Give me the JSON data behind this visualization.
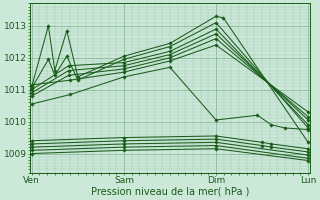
{
  "background_color": "#cce8d8",
  "line_color": "#1a5c1a",
  "grid_color_minor": "#aacfbc",
  "grid_color_major": "#88b89a",
  "xlabel": "Pression niveau de la mer( hPa )",
  "xtick_labels": [
    "Ven",
    "Sam",
    "Dim",
    "Lun"
  ],
  "xtick_positions": [
    0,
    1,
    2,
    3
  ],
  "ylim": [
    1008.4,
    1013.6
  ],
  "yticks": [
    1009,
    1010,
    1011,
    1012,
    1013
  ],
  "upper_series": [
    {
      "x": [
        0.0,
        0.18,
        0.25,
        0.38,
        0.5,
        1.0,
        1.5,
        2.0,
        2.08,
        3.0
      ],
      "y": [
        1011.1,
        1013.0,
        1011.6,
        1012.85,
        1011.4,
        1012.05,
        1012.45,
        1013.3,
        1013.25,
        1009.35
      ]
    },
    {
      "x": [
        0.0,
        0.18,
        0.25,
        0.38,
        0.5,
        1.0,
        1.5,
        2.0,
        3.0
      ],
      "y": [
        1011.05,
        1011.95,
        1011.45,
        1012.05,
        1011.3,
        1011.95,
        1012.35,
        1013.1,
        1009.8
      ]
    },
    {
      "x": [
        0.0,
        0.4,
        1.0,
        1.5,
        2.0,
        3.0
      ],
      "y": [
        1011.0,
        1011.75,
        1011.85,
        1012.2,
        1012.9,
        1009.9
      ]
    },
    {
      "x": [
        0.0,
        0.4,
        1.0,
        1.5,
        2.0,
        3.0
      ],
      "y": [
        1010.9,
        1011.6,
        1011.75,
        1012.1,
        1012.75,
        1010.05
      ]
    },
    {
      "x": [
        0.0,
        0.4,
        1.0,
        1.5,
        2.0,
        3.0
      ],
      "y": [
        1010.8,
        1011.45,
        1011.65,
        1012.0,
        1012.6,
        1010.15
      ]
    },
    {
      "x": [
        0.0,
        0.42,
        1.0,
        1.5,
        2.0,
        3.0
      ],
      "y": [
        1011.15,
        1011.3,
        1011.55,
        1011.9,
        1012.4,
        1010.3
      ]
    },
    {
      "x": [
        0.0,
        0.42,
        1.0,
        1.5,
        2.0,
        2.45,
        2.6,
        2.75,
        3.0
      ],
      "y": [
        1010.55,
        1010.85,
        1011.4,
        1011.7,
        1010.05,
        1010.2,
        1009.9,
        1009.8,
        1009.75
      ]
    }
  ],
  "lower_series": [
    {
      "x": [
        0.0,
        1.0,
        2.0,
        2.5,
        2.6,
        3.0
      ],
      "y": [
        1009.4,
        1009.5,
        1009.55,
        1009.35,
        1009.3,
        1009.15
      ]
    },
    {
      "x": [
        0.0,
        1.0,
        2.0,
        2.5,
        2.6,
        3.0
      ],
      "y": [
        1009.3,
        1009.4,
        1009.45,
        1009.25,
        1009.2,
        1009.05
      ]
    },
    {
      "x": [
        0.0,
        1.0,
        2.0,
        3.0
      ],
      "y": [
        1009.2,
        1009.3,
        1009.35,
        1008.95
      ]
    },
    {
      "x": [
        0.0,
        1.0,
        2.0,
        3.0
      ],
      "y": [
        1009.1,
        1009.2,
        1009.25,
        1008.85
      ]
    },
    {
      "x": [
        0.0,
        1.0,
        2.0,
        3.0
      ],
      "y": [
        1009.0,
        1009.1,
        1009.15,
        1008.78
      ]
    }
  ],
  "figsize": [
    3.2,
    2.0
  ],
  "dpi": 100
}
